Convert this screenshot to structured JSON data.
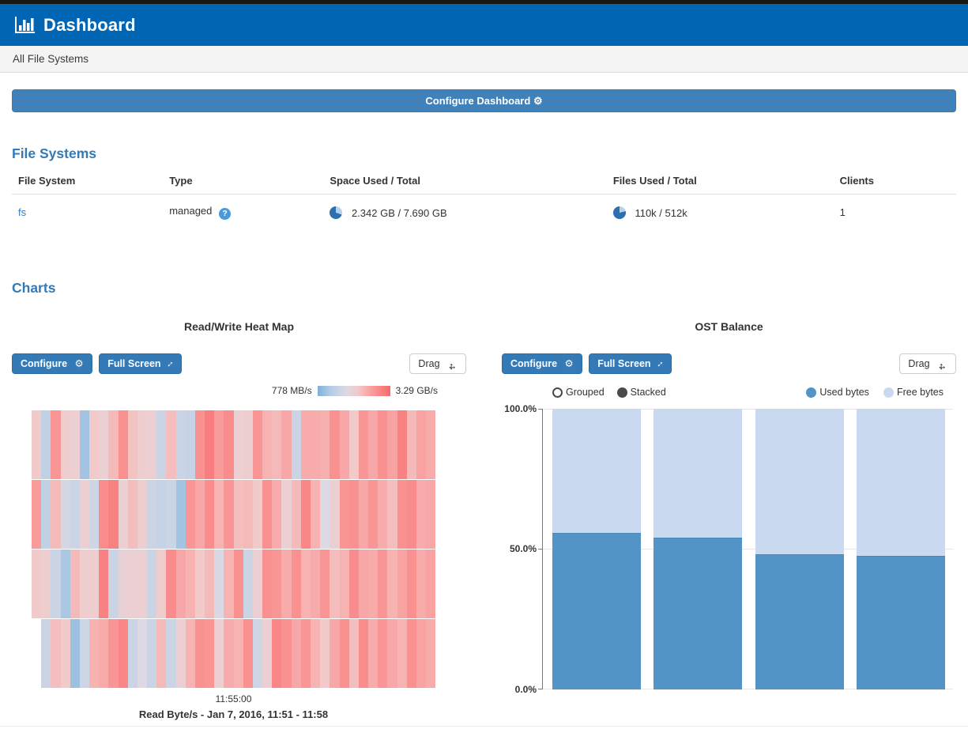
{
  "header": {
    "title": "Dashboard"
  },
  "breadcrumb": {
    "label": "All File Systems"
  },
  "configure_dashboard": {
    "label": "Configure Dashboard"
  },
  "icons": {
    "gear": "⚙",
    "expand": "↕",
    "move_h": "↔",
    "move_v": "↕",
    "help": "?"
  },
  "colors": {
    "header_blue": "#0066b3",
    "primary_btn": "#337ab7",
    "wide_btn": "#4181ba",
    "heading_blue": "#337ab7",
    "link_blue": "#337ab7",
    "used": "#5194c5",
    "free": "#c9d9ef",
    "pie_dark": "#2e6fad",
    "pie_light": "#b9d2ea",
    "help": "#459ae0"
  },
  "file_systems": {
    "heading": "File Systems",
    "columns": [
      "File System",
      "Type",
      "Space Used / Total",
      "Files Used / Total",
      "Clients"
    ],
    "row": {
      "name": "fs",
      "type": "managed",
      "space": "2.342 GB / 7.690 GB",
      "space_used_pct": 30,
      "files": "110k / 512k",
      "files_used_pct": 21,
      "clients": "1"
    }
  },
  "charts_heading": "Charts",
  "heatmap_panel": {
    "title": "Read/Write Heat Map",
    "configure_label": "Configure",
    "fullscreen_label": "Full Screen",
    "drag_label": "Drag",
    "legend_min": "778 MB/s",
    "legend_max": "3.29 GB/s",
    "x_tick": "11:55:00",
    "caption": "Read Byte/s - Jan 7, 2016, 11:51 - 11:58"
  },
  "ost_panel": {
    "title": "OST Balance",
    "configure_label": "Configure",
    "fullscreen_label": "Full Screen",
    "drag_label": "Drag",
    "controls": [
      {
        "label": "Grouped",
        "selected": false
      },
      {
        "label": "Stacked",
        "selected": true
      }
    ],
    "legend": [
      {
        "label": "Used bytes",
        "color": "#5194c5"
      },
      {
        "label": "Free bytes",
        "color": "#c9d9ef"
      }
    ],
    "y_ticks": [
      "100.0%",
      "50.0%",
      "0.0%"
    ]
  },
  "chart_data": [
    {
      "type": "heatmap",
      "title": "Read/Write Heat Map",
      "metric": "Read Byte/s",
      "legend": {
        "min": "778 MB/s",
        "max": "3.29 GB/s"
      },
      "x_axis": {
        "tick": "11:55:00",
        "range": "Jan 7, 2016, 11:51 - 11:58"
      },
      "color_scale": {
        "stops": [
          [
            0,
            "#7fb1d9"
          ],
          [
            0.18,
            "#b3cde6"
          ],
          [
            0.4,
            "#ddd9e4"
          ],
          [
            0.55,
            "#f2cac9"
          ],
          [
            0.75,
            "#f99b9b"
          ],
          [
            1,
            "#f8696b"
          ]
        ]
      },
      "row_offsets": [
        0,
        0,
        0,
        1
      ],
      "rows": [
        [
          0.55,
          0.25,
          0.78,
          0.52,
          0.5,
          0.12,
          0.55,
          0.5,
          0.62,
          0.8,
          0.58,
          0.52,
          0.5,
          0.3,
          0.6,
          0.3,
          0.28,
          0.8,
          0.9,
          0.75,
          0.82,
          0.5,
          0.52,
          0.78,
          0.65,
          0.62,
          0.7,
          0.3,
          0.68,
          0.68,
          0.66,
          0.8,
          0.7,
          0.55,
          0.78,
          0.7,
          0.8,
          0.72,
          0.88,
          0.62,
          0.72,
          0.68
        ],
        [
          0.75,
          0.25,
          0.62,
          0.35,
          0.3,
          0.5,
          0.32,
          0.82,
          0.88,
          0.5,
          0.6,
          0.52,
          0.3,
          0.28,
          0.3,
          0.12,
          0.78,
          0.7,
          0.82,
          0.65,
          0.78,
          0.6,
          0.62,
          0.55,
          0.8,
          0.68,
          0.5,
          0.62,
          0.85,
          0.65,
          0.4,
          0.5,
          0.78,
          0.8,
          0.7,
          0.78,
          0.68,
          0.6,
          0.8,
          0.83,
          0.68,
          0.7
        ],
        [
          0.55,
          0.52,
          0.3,
          0.15,
          0.62,
          0.52,
          0.52,
          0.88,
          0.3,
          0.48,
          0.5,
          0.5,
          0.3,
          0.52,
          0.82,
          0.7,
          0.65,
          0.55,
          0.62,
          0.38,
          0.65,
          0.8,
          0.3,
          0.5,
          0.8,
          0.78,
          0.68,
          0.8,
          0.65,
          0.68,
          0.78,
          0.6,
          0.65,
          0.82,
          0.7,
          0.68,
          0.78,
          0.65,
          0.72,
          0.8,
          0.68,
          0.72
        ],
        [
          0.3,
          0.6,
          0.55,
          0.1,
          0.32,
          0.65,
          0.68,
          0.78,
          0.85,
          0.3,
          0.4,
          0.3,
          0.62,
          0.3,
          0.5,
          0.65,
          0.8,
          0.78,
          0.5,
          0.68,
          0.65,
          0.8,
          0.32,
          0.5,
          0.85,
          0.8,
          0.7,
          0.78,
          0.65,
          0.55,
          0.7,
          0.8,
          0.6,
          0.82,
          0.68,
          0.78,
          0.7,
          0.65,
          0.8,
          0.72,
          0.68
        ]
      ]
    },
    {
      "type": "bar",
      "stacked": true,
      "title": "OST Balance",
      "ylabel": "",
      "ylim": [
        0,
        100
      ],
      "y_tick_labels": [
        "100.0%",
        "50.0%",
        "0.0%"
      ],
      "bars": 4,
      "series": [
        {
          "name": "Used bytes",
          "color": "#5194c5",
          "values": [
            55.8,
            54.1,
            48.2,
            47.5
          ]
        },
        {
          "name": "Free bytes",
          "color": "#c9d9ef",
          "values": [
            44.2,
            45.9,
            51.8,
            52.5
          ]
        }
      ]
    }
  ]
}
